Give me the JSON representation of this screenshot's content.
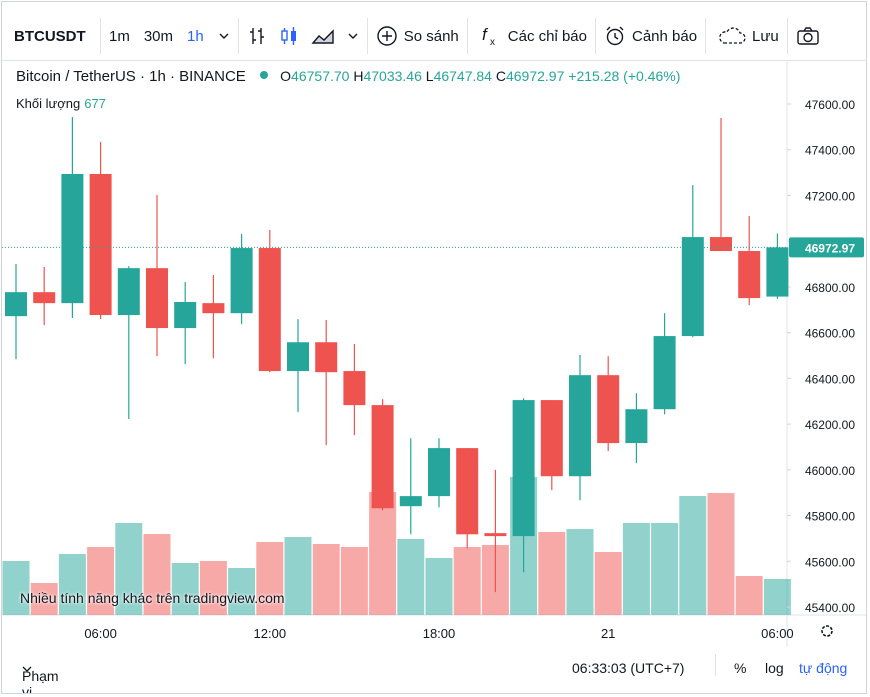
{
  "toolbar": {
    "symbol": "BTCUSDT",
    "intervals": [
      "1m",
      "30m",
      "1h"
    ],
    "compare": "So sánh",
    "indicators": "Các chỉ báo",
    "alerts": "Cảnh báo",
    "save": "Lưu"
  },
  "legend": {
    "title": "Bitcoin / TetherUS · 1h · BINANCE",
    "open_label": "O",
    "open": "46757.70",
    "high_label": "H",
    "high": "47033.46",
    "low_label": "L",
    "low": "46747.84",
    "close_label": "C",
    "close": "46972.97",
    "change": "+215.28 (+0.46%)",
    "volume_label": "Khối lượng"
  },
  "watermark": "Nhiều tính năng khác trên tradingview.com",
  "footer": {
    "range": "Phạm vi Ngày",
    "clock": "06:33:03 (UTC+7)",
    "percent": "%",
    "log": "log",
    "auto": "tự động"
  },
  "chart_data": {
    "type": "candlestick",
    "categories": [
      null,
      null,
      null,
      "06:00",
      null,
      null,
      null,
      null,
      null,
      "12:00",
      null,
      null,
      null,
      null,
      null,
      "18:00",
      null,
      null,
      null,
      null,
      null,
      "21",
      null,
      null,
      null,
      null,
      null,
      "06:00"
    ],
    "open": [
      46672,
      46777,
      46729,
      47294,
      46677,
      46882,
      46620,
      46729,
      46685,
      46970,
      46432,
      46558,
      46432,
      46283,
      45841,
      45885,
      46095,
      45723,
      45710,
      46305,
      45972,
      46414,
      46117,
      46265,
      46585,
      47018,
      46957,
      46757.7
    ],
    "high": [
      46900,
      46887,
      47543,
      47434,
      46891,
      47202,
      46821,
      46852,
      47031,
      47049,
      46659,
      46655,
      46550,
      46309,
      46138,
      46138,
      46095,
      46000,
      46313,
      46305,
      46502,
      46497,
      46335,
      46685,
      47245,
      47539,
      47110,
      47033.46
    ],
    "low": [
      46484,
      46633,
      46664,
      46660,
      46222,
      46497,
      46462,
      46488,
      46637,
      46427,
      46252,
      46108,
      46152,
      45823,
      45718,
      45836,
      45657,
      45465,
      45552,
      45911,
      45867,
      46082,
      46029,
      46243,
      46580,
      46957,
      46720,
      46747.84
    ],
    "close": [
      46777,
      46729,
      47294,
      46677,
      46882,
      46620,
      46734,
      46685,
      46970,
      46432,
      46558,
      46427,
      46283,
      45832,
      45885,
      46095,
      45718,
      45710,
      46305,
      45972,
      46414,
      46117,
      46265,
      46585,
      47018,
      46957,
      46751,
      46972.97
    ],
    "up_color": "#26a69a",
    "down_color": "#ef5350",
    "volume": {
      "name": "677",
      "values": [
        1016,
        602,
        1147,
        1279,
        1730,
        1523,
        978,
        1016,
        884,
        1373,
        1467,
        1335,
        1279,
        2313,
        1429,
        1072,
        1279,
        1316,
        2595,
        1561,
        1617,
        1185,
        1730,
        1730,
        2238,
        2294,
        733,
        677
      ]
    },
    "ylim": [
      45400,
      47600
    ],
    "yticks": [
      {
        "value": 45400,
        "label": "45400.00"
      },
      {
        "value": 45600,
        "label": "45600.00"
      },
      {
        "value": 45800,
        "label": "45800.00"
      },
      {
        "value": 46000,
        "label": "46000.00"
      },
      {
        "value": 46200,
        "label": "46200.00"
      },
      {
        "value": 46400,
        "label": "46400.00"
      },
      {
        "value": 46600,
        "label": "46600.00"
      },
      {
        "value": 46800,
        "label": "46800.00"
      },
      {
        "value": 47000,
        "label": "47000.00"
      },
      {
        "value": 47200,
        "label": "47200.00"
      },
      {
        "value": 47400,
        "label": "47400.00"
      },
      {
        "value": 47600,
        "label": "47600.00"
      }
    ],
    "grid": false
  }
}
